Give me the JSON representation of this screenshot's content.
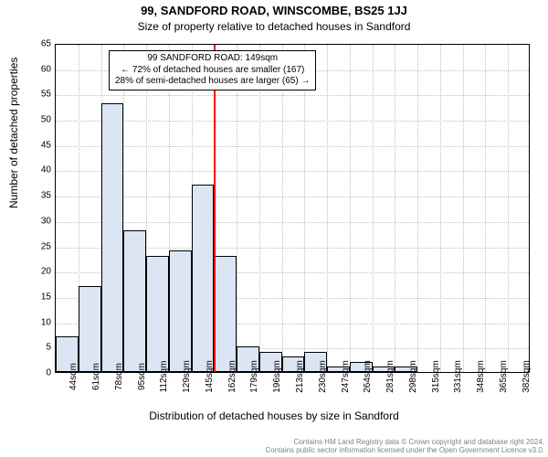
{
  "chart": {
    "type": "histogram",
    "title_line1": "99, SANDFORD ROAD, WINSCOMBE, BS25 1JJ",
    "title_line2": "Size of property relative to detached houses in Sandford",
    "title_fontsize": 13,
    "subtitle_fontsize": 12,
    "y_label": "Number of detached properties",
    "x_label": "Distribution of detached houses by size in Sandford",
    "axis_label_fontsize": 12,
    "tick_fontsize": 10,
    "ylim": [
      0,
      65
    ],
    "ytick_step": 5,
    "x_categories": [
      "44sqm",
      "61sqm",
      "78sqm",
      "95sqm",
      "112sqm",
      "129sqm",
      "145sqm",
      "162sqm",
      "179sqm",
      "196sqm",
      "213sqm",
      "230sqm",
      "247sqm",
      "264sqm",
      "281sqm",
      "298sqm",
      "315sqm",
      "331sqm",
      "348sqm",
      "365sqm",
      "382sqm"
    ],
    "values": [
      7,
      17,
      53,
      28,
      23,
      24,
      37,
      23,
      5,
      4,
      3,
      4,
      1,
      2,
      1,
      1,
      0,
      0,
      0,
      0,
      0
    ],
    "bar_color": "#dce5f4",
    "bar_border": "#000000",
    "background_color": "#ffffff",
    "grid_color": "#c0c0c0",
    "ref_line_color": "#ff0000",
    "ref_after_index": 6,
    "annotation": {
      "line1": "99 SANDFORD ROAD: 149sqm",
      "line2": "← 72% of detached houses are smaller (167)",
      "line3": "28% of semi-detached houses are larger (65) →",
      "fontsize": 10
    },
    "footer": {
      "line1": "Contains HM Land Registry data © Crown copyright and database right 2024.",
      "line2": "Contains public sector information licensed under the Open Government Licence v3.0.",
      "fontsize": 8,
      "color": "#808080"
    }
  }
}
